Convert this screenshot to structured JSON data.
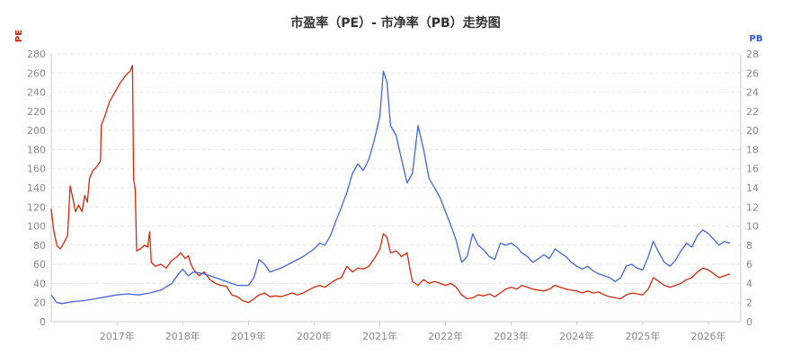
{
  "chart_data": {
    "type": "line",
    "title": "市盈率（PE）- 市净率（PB）走势图",
    "y_left": {
      "label": "PE",
      "min": 0,
      "max": 280,
      "step": 20,
      "color": "#cc2200"
    },
    "y_right": {
      "label": "PB",
      "min": 0,
      "max": 28,
      "step": 2,
      "color": "#3355cc"
    },
    "x_range": [
      "2016-01-01",
      "2026-06-30"
    ],
    "x_ticks": [
      "2017年",
      "2018年",
      "2019年",
      "2020年",
      "2021年",
      "2022年",
      "2023年",
      "2024年",
      "2025年",
      "2026年"
    ],
    "grid": true,
    "series": [
      {
        "name": "PE",
        "axis": "left",
        "color": "#d42a0c",
        "points": [
          [
            "2016-01-01",
            118
          ],
          [
            "2016-01-15",
            95
          ],
          [
            "2016-02-01",
            80
          ],
          [
            "2016-02-20",
            76
          ],
          [
            "2016-03-10",
            82
          ],
          [
            "2016-04-01",
            90
          ],
          [
            "2016-04-15",
            142
          ],
          [
            "2016-05-01",
            128
          ],
          [
            "2016-05-15",
            115
          ],
          [
            "2016-06-01",
            122
          ],
          [
            "2016-06-20",
            115
          ],
          [
            "2016-07-05",
            132
          ],
          [
            "2016-07-20",
            125
          ],
          [
            "2016-08-01",
            150
          ],
          [
            "2016-08-20",
            158
          ],
          [
            "2016-09-10",
            162
          ],
          [
            "2016-10-01",
            168
          ],
          [
            "2016-10-05",
            205
          ],
          [
            "2016-10-25",
            215
          ],
          [
            "2016-11-20",
            230
          ],
          [
            "2016-12-20",
            240
          ],
          [
            "2017-01-20",
            250
          ],
          [
            "2017-02-20",
            258
          ],
          [
            "2017-03-15",
            262
          ],
          [
            "2017-03-28",
            268
          ],
          [
            "2017-04-03",
            150
          ],
          [
            "2017-04-12",
            138
          ],
          [
            "2017-04-20",
            74
          ],
          [
            "2017-05-10",
            76
          ],
          [
            "2017-06-01",
            80
          ],
          [
            "2017-06-20",
            78
          ],
          [
            "2017-07-01",
            94
          ],
          [
            "2017-07-10",
            62
          ],
          [
            "2017-08-01",
            58
          ],
          [
            "2017-09-01",
            60
          ],
          [
            "2017-10-01",
            56
          ],
          [
            "2017-11-01",
            64
          ],
          [
            "2017-12-01",
            68
          ],
          [
            "2017-12-20",
            72
          ],
          [
            "2018-01-15",
            66
          ],
          [
            "2018-02-01",
            69
          ],
          [
            "2018-02-15",
            60
          ],
          [
            "2018-03-01",
            55
          ],
          [
            "2018-04-01",
            48
          ],
          [
            "2018-05-01",
            52
          ],
          [
            "2018-06-01",
            44
          ],
          [
            "2018-07-01",
            40
          ],
          [
            "2018-08-01",
            38
          ],
          [
            "2018-09-01",
            37
          ],
          [
            "2018-10-01",
            28
          ],
          [
            "2018-11-01",
            26
          ],
          [
            "2018-12-01",
            22
          ],
          [
            "2019-01-01",
            20
          ],
          [
            "2019-02-01",
            24
          ],
          [
            "2019-03-01",
            28
          ],
          [
            "2019-04-01",
            30
          ],
          [
            "2019-05-01",
            26
          ],
          [
            "2019-06-01",
            27
          ],
          [
            "2019-07-01",
            26
          ],
          [
            "2019-08-01",
            28
          ],
          [
            "2019-09-01",
            30
          ],
          [
            "2019-10-01",
            28
          ],
          [
            "2019-11-01",
            30
          ],
          [
            "2019-12-01",
            33
          ],
          [
            "2020-01-01",
            36
          ],
          [
            "2020-02-01",
            38
          ],
          [
            "2020-03-01",
            36
          ],
          [
            "2020-04-01",
            40
          ],
          [
            "2020-05-01",
            44
          ],
          [
            "2020-06-01",
            46
          ],
          [
            "2020-07-01",
            58
          ],
          [
            "2020-08-01",
            52
          ],
          [
            "2020-09-01",
            56
          ],
          [
            "2020-10-01",
            55
          ],
          [
            "2020-11-01",
            58
          ],
          [
            "2020-12-01",
            66
          ],
          [
            "2021-01-01",
            76
          ],
          [
            "2021-01-20",
            92
          ],
          [
            "2021-02-10",
            88
          ],
          [
            "2021-03-01",
            72
          ],
          [
            "2021-04-01",
            74
          ],
          [
            "2021-05-01",
            68
          ],
          [
            "2021-06-01",
            72
          ],
          [
            "2021-06-20",
            52
          ],
          [
            "2021-07-01",
            42
          ],
          [
            "2021-08-01",
            38
          ],
          [
            "2021-09-01",
            44
          ],
          [
            "2021-10-01",
            40
          ],
          [
            "2021-11-01",
            42
          ],
          [
            "2021-12-01",
            40
          ],
          [
            "2022-01-01",
            38
          ],
          [
            "2022-02-01",
            40
          ],
          [
            "2022-03-01",
            36
          ],
          [
            "2022-04-01",
            28
          ],
          [
            "2022-05-01",
            24
          ],
          [
            "2022-06-01",
            25
          ],
          [
            "2022-07-01",
            28
          ],
          [
            "2022-08-01",
            27
          ],
          [
            "2022-09-01",
            29
          ],
          [
            "2022-10-01",
            26
          ],
          [
            "2022-11-01",
            30
          ],
          [
            "2022-12-01",
            34
          ],
          [
            "2023-01-01",
            36
          ],
          [
            "2023-02-01",
            34
          ],
          [
            "2023-03-01",
            38
          ],
          [
            "2023-04-01",
            36
          ],
          [
            "2023-05-01",
            34
          ],
          [
            "2023-06-01",
            33
          ],
          [
            "2023-07-01",
            32
          ],
          [
            "2023-08-01",
            34
          ],
          [
            "2023-09-01",
            38
          ],
          [
            "2023-10-01",
            36
          ],
          [
            "2023-11-01",
            34
          ],
          [
            "2023-12-01",
            33
          ],
          [
            "2024-01-01",
            32
          ],
          [
            "2024-02-01",
            30
          ],
          [
            "2024-03-01",
            32
          ],
          [
            "2024-04-01",
            30
          ],
          [
            "2024-05-01",
            31
          ],
          [
            "2024-06-01",
            28
          ],
          [
            "2024-07-01",
            26
          ],
          [
            "2024-08-01",
            25
          ],
          [
            "2024-09-01",
            24
          ],
          [
            "2024-10-01",
            28
          ],
          [
            "2024-11-01",
            30
          ],
          [
            "2024-12-01",
            29
          ],
          [
            "2025-01-01",
            28
          ],
          [
            "2025-02-01",
            34
          ],
          [
            "2025-03-01",
            46
          ],
          [
            "2025-04-01",
            42
          ],
          [
            "2025-05-01",
            38
          ],
          [
            "2025-06-01",
            36
          ],
          [
            "2025-07-01",
            38
          ],
          [
            "2025-08-01",
            40
          ],
          [
            "2025-09-01",
            44
          ],
          [
            "2025-10-01",
            46
          ],
          [
            "2025-11-01",
            52
          ],
          [
            "2025-12-01",
            56
          ],
          [
            "2026-01-01",
            54
          ],
          [
            "2026-02-01",
            50
          ],
          [
            "2026-03-01",
            46
          ],
          [
            "2026-04-01",
            48
          ],
          [
            "2026-05-01",
            50
          ]
        ]
      },
      {
        "name": "PB",
        "axis": "right",
        "color": "#4466dd",
        "points": [
          [
            "2016-01-01",
            2.8
          ],
          [
            "2016-02-01",
            2.0
          ],
          [
            "2016-03-01",
            1.9
          ],
          [
            "2016-05-01",
            2.1
          ],
          [
            "2016-07-01",
            2.2
          ],
          [
            "2016-09-01",
            2.4
          ],
          [
            "2016-11-01",
            2.6
          ],
          [
            "2017-01-01",
            2.8
          ],
          [
            "2017-03-01",
            2.9
          ],
          [
            "2017-05-01",
            2.8
          ],
          [
            "2017-07-01",
            3.0
          ],
          [
            "2017-09-01",
            3.3
          ],
          [
            "2017-11-01",
            4.0
          ],
          [
            "2017-12-01",
            4.8
          ],
          [
            "2018-01-01",
            5.5
          ],
          [
            "2018-02-01",
            4.8
          ],
          [
            "2018-03-01",
            5.2
          ],
          [
            "2018-05-01",
            5.0
          ],
          [
            "2018-07-01",
            4.6
          ],
          [
            "2018-09-01",
            4.2
          ],
          [
            "2018-11-01",
            3.8
          ],
          [
            "2019-01-01",
            3.8
          ],
          [
            "2019-02-01",
            4.6
          ],
          [
            "2019-03-01",
            6.5
          ],
          [
            "2019-04-01",
            6.0
          ],
          [
            "2019-05-01",
            5.2
          ],
          [
            "2019-07-01",
            5.6
          ],
          [
            "2019-09-01",
            6.2
          ],
          [
            "2019-11-01",
            6.8
          ],
          [
            "2020-01-01",
            7.6
          ],
          [
            "2020-02-01",
            8.2
          ],
          [
            "2020-03-01",
            8.0
          ],
          [
            "2020-04-01",
            9.0
          ],
          [
            "2020-05-01",
            10.5
          ],
          [
            "2020-06-01",
            12.0
          ],
          [
            "2020-07-01",
            13.5
          ],
          [
            "2020-08-01",
            15.5
          ],
          [
            "2020-09-01",
            16.5
          ],
          [
            "2020-10-01",
            15.8
          ],
          [
            "2020-11-01",
            17.0
          ],
          [
            "2020-12-01",
            19.0
          ],
          [
            "2021-01-01",
            21.5
          ],
          [
            "2021-01-20",
            26.2
          ],
          [
            "2021-02-10",
            25.0
          ],
          [
            "2021-03-01",
            20.5
          ],
          [
            "2021-04-01",
            19.5
          ],
          [
            "2021-05-01",
            17.0
          ],
          [
            "2021-06-01",
            14.5
          ],
          [
            "2021-07-01",
            15.5
          ],
          [
            "2021-08-01",
            20.5
          ],
          [
            "2021-09-01",
            18.0
          ],
          [
            "2021-10-01",
            15.0
          ],
          [
            "2021-11-01",
            14.0
          ],
          [
            "2021-12-01",
            13.0
          ],
          [
            "2022-01-01",
            11.5
          ],
          [
            "2022-02-01",
            10.0
          ],
          [
            "2022-03-01",
            8.5
          ],
          [
            "2022-04-01",
            6.2
          ],
          [
            "2022-05-01",
            6.8
          ],
          [
            "2022-06-01",
            9.2
          ],
          [
            "2022-07-01",
            8.0
          ],
          [
            "2022-08-01",
            7.5
          ],
          [
            "2022-09-01",
            6.8
          ],
          [
            "2022-10-01",
            6.5
          ],
          [
            "2022-11-01",
            8.2
          ],
          [
            "2022-12-01",
            8.0
          ],
          [
            "2023-01-01",
            8.2
          ],
          [
            "2023-02-01",
            7.8
          ],
          [
            "2023-03-01",
            7.2
          ],
          [
            "2023-04-01",
            6.8
          ],
          [
            "2023-05-01",
            6.2
          ],
          [
            "2023-06-01",
            6.6
          ],
          [
            "2023-07-01",
            7.0
          ],
          [
            "2023-08-01",
            6.6
          ],
          [
            "2023-09-01",
            7.6
          ],
          [
            "2023-10-01",
            7.2
          ],
          [
            "2023-11-01",
            6.8
          ],
          [
            "2023-12-01",
            6.2
          ],
          [
            "2024-01-01",
            5.8
          ],
          [
            "2024-02-01",
            5.5
          ],
          [
            "2024-03-01",
            5.8
          ],
          [
            "2024-04-01",
            5.3
          ],
          [
            "2024-05-01",
            5.0
          ],
          [
            "2024-06-01",
            4.8
          ],
          [
            "2024-07-01",
            4.6
          ],
          [
            "2024-08-01",
            4.2
          ],
          [
            "2024-09-01",
            4.6
          ],
          [
            "2024-10-01",
            5.8
          ],
          [
            "2024-11-01",
            6.0
          ],
          [
            "2024-12-01",
            5.6
          ],
          [
            "2025-01-01",
            5.4
          ],
          [
            "2025-02-01",
            6.8
          ],
          [
            "2025-03-01",
            8.4
          ],
          [
            "2025-04-01",
            7.2
          ],
          [
            "2025-05-01",
            6.2
          ],
          [
            "2025-06-01",
            5.8
          ],
          [
            "2025-07-01",
            6.4
          ],
          [
            "2025-08-01",
            7.4
          ],
          [
            "2025-09-01",
            8.2
          ],
          [
            "2025-10-01",
            7.8
          ],
          [
            "2025-11-01",
            9.0
          ],
          [
            "2025-12-01",
            9.6
          ],
          [
            "2026-01-01",
            9.2
          ],
          [
            "2026-02-01",
            8.6
          ],
          [
            "2026-03-01",
            8.0
          ],
          [
            "2026-04-01",
            8.4
          ],
          [
            "2026-05-01",
            8.2
          ]
        ]
      }
    ]
  }
}
